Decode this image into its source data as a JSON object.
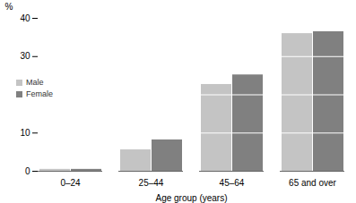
{
  "chart_data": {
    "type": "bar",
    "categories": [
      "0–24",
      "25–44",
      "45–64",
      "65 and over"
    ],
    "series": [
      {
        "name": "Male",
        "color": "#c4c4c4",
        "values": [
          0.5,
          5.6,
          22.7,
          36.0
        ]
      },
      {
        "name": "Female",
        "color": "#808080",
        "values": [
          0.5,
          8.2,
          25.2,
          36.5
        ]
      }
    ],
    "x_label": "Age group (years)",
    "y_label": "%",
    "ylim": [
      0,
      40
    ],
    "yticks": [
      0,
      10,
      20,
      30,
      40
    ],
    "grid": true,
    "legend": "left"
  }
}
